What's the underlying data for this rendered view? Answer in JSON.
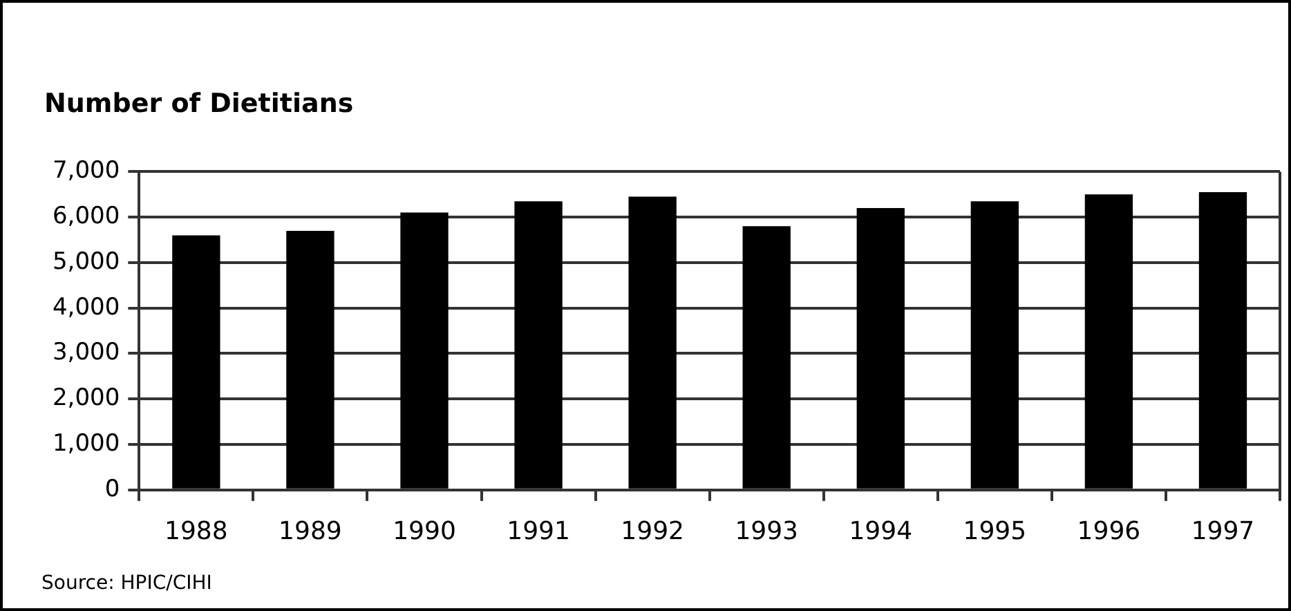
{
  "chart_data": {
    "type": "bar",
    "title": "Number of Dietitians",
    "categories": [
      "1988",
      "1989",
      "1990",
      "1991",
      "1992",
      "1993",
      "1994",
      "1995",
      "1996",
      "1997"
    ],
    "series": [
      {
        "color": "#000000",
        "values": [
          5600,
          5700,
          6100,
          6350,
          6450,
          5800,
          6200,
          6350,
          6500,
          6550
        ]
      }
    ],
    "ylim": [
      0,
      7000
    ],
    "yticks": [
      {
        "value": 0,
        "label": "0"
      },
      {
        "value": 1000,
        "label": "1,000"
      },
      {
        "value": 2000,
        "label": "2,000"
      },
      {
        "value": 3000,
        "label": "3,000"
      },
      {
        "value": 4000,
        "label": "4,000"
      },
      {
        "value": 5000,
        "label": "5,000"
      },
      {
        "value": 6000,
        "label": "6,000"
      },
      {
        "value": 7000,
        "label": "7,000"
      }
    ],
    "grid": "y",
    "legend": false,
    "annotations": [
      "Source: HPIC/CIHI"
    ]
  }
}
